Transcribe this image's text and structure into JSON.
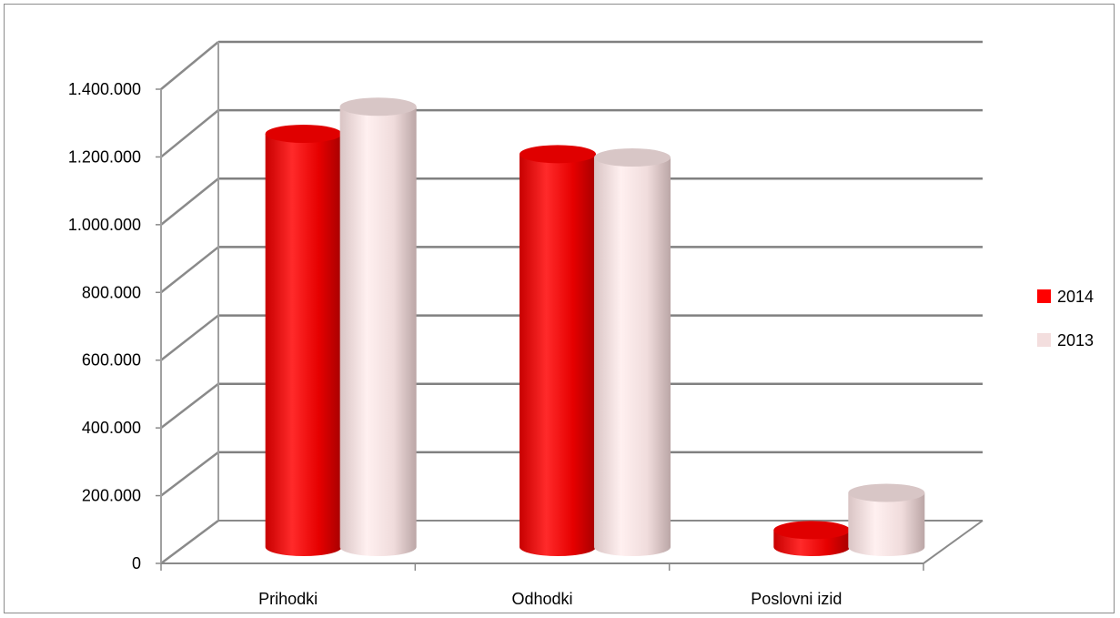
{
  "chart_data": {
    "type": "bar",
    "style": "3d-cylinder",
    "categories": [
      "Prihodki",
      "Odhodki",
      "Poslovni izid"
    ],
    "series": [
      {
        "name": "2014",
        "values": [
          1220000,
          1160000,
          50000
        ],
        "color": "#ff0000"
      },
      {
        "name": "2013",
        "values": [
          1300000,
          1150000,
          160000
        ],
        "color": "#f3dede"
      }
    ],
    "y_ticks": [
      "0",
      "200.000",
      "400.000",
      "600.000",
      "800.000",
      "1.000.000",
      "1.200.000",
      "1.400.000"
    ],
    "ylim": [
      0,
      1400000
    ],
    "grid": true,
    "legend_position": "right"
  }
}
